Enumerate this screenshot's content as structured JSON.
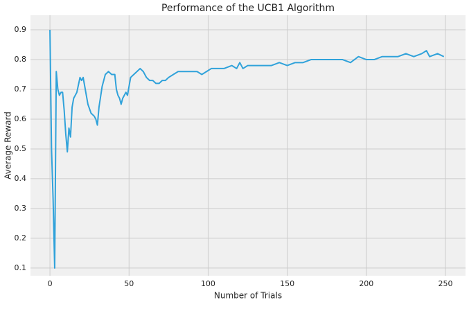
{
  "chart_data": {
    "type": "line",
    "title": "Performance of the UCB1 Algorithm",
    "x_label": "Number of Trials",
    "y_label": "Average Reward",
    "x": [
      0,
      1,
      2,
      3,
      4,
      5,
      6,
      7,
      8,
      9,
      10,
      11,
      12,
      13,
      14,
      15,
      17,
      19,
      20,
      21,
      22,
      24,
      26,
      28,
      29,
      30,
      31,
      33,
      35,
      37,
      39,
      41,
      42,
      43,
      44,
      45,
      46,
      48,
      49,
      50,
      51,
      53,
      55,
      57,
      59,
      61,
      63,
      65,
      67,
      69,
      71,
      73,
      75,
      78,
      81,
      84,
      87,
      90,
      93,
      96,
      99,
      102,
      105,
      110,
      115,
      118,
      120,
      122,
      125,
      130,
      135,
      140,
      145,
      150,
      155,
      160,
      165,
      170,
      175,
      180,
      185,
      190,
      195,
      200,
      205,
      210,
      215,
      220,
      225,
      230,
      235,
      238,
      240,
      245,
      249
    ],
    "series": [
      {
        "name": "Average Reward",
        "color": "#30a2da",
        "values": [
          0.9,
          0.5,
          0.33,
          0.1,
          0.76,
          0.7,
          0.68,
          0.69,
          0.69,
          0.63,
          0.55,
          0.49,
          0.57,
          0.54,
          0.64,
          0.67,
          0.69,
          0.74,
          0.73,
          0.74,
          0.71,
          0.65,
          0.62,
          0.61,
          0.6,
          0.58,
          0.64,
          0.71,
          0.75,
          0.76,
          0.75,
          0.75,
          0.7,
          0.68,
          0.67,
          0.65,
          0.67,
          0.69,
          0.68,
          0.71,
          0.74,
          0.75,
          0.76,
          0.77,
          0.76,
          0.74,
          0.73,
          0.73,
          0.72,
          0.72,
          0.73,
          0.73,
          0.74,
          0.75,
          0.76,
          0.76,
          0.76,
          0.76,
          0.76,
          0.75,
          0.76,
          0.77,
          0.77,
          0.77,
          0.78,
          0.77,
          0.79,
          0.77,
          0.78,
          0.78,
          0.78,
          0.78,
          0.79,
          0.78,
          0.79,
          0.79,
          0.8,
          0.8,
          0.8,
          0.8,
          0.8,
          0.79,
          0.81,
          0.8,
          0.8,
          0.81,
          0.81,
          0.81,
          0.82,
          0.81,
          0.82,
          0.83,
          0.81,
          0.82,
          0.81
        ]
      }
    ],
    "xlim": [
      -12.3,
      262.7
    ],
    "ylim": [
      0.074,
      0.949
    ],
    "xticks": [
      0,
      50,
      100,
      150,
      200,
      250
    ],
    "yticks": [
      0.1,
      0.2,
      0.3,
      0.4,
      0.5,
      0.6,
      0.7,
      0.8,
      0.9
    ],
    "grid": true
  }
}
